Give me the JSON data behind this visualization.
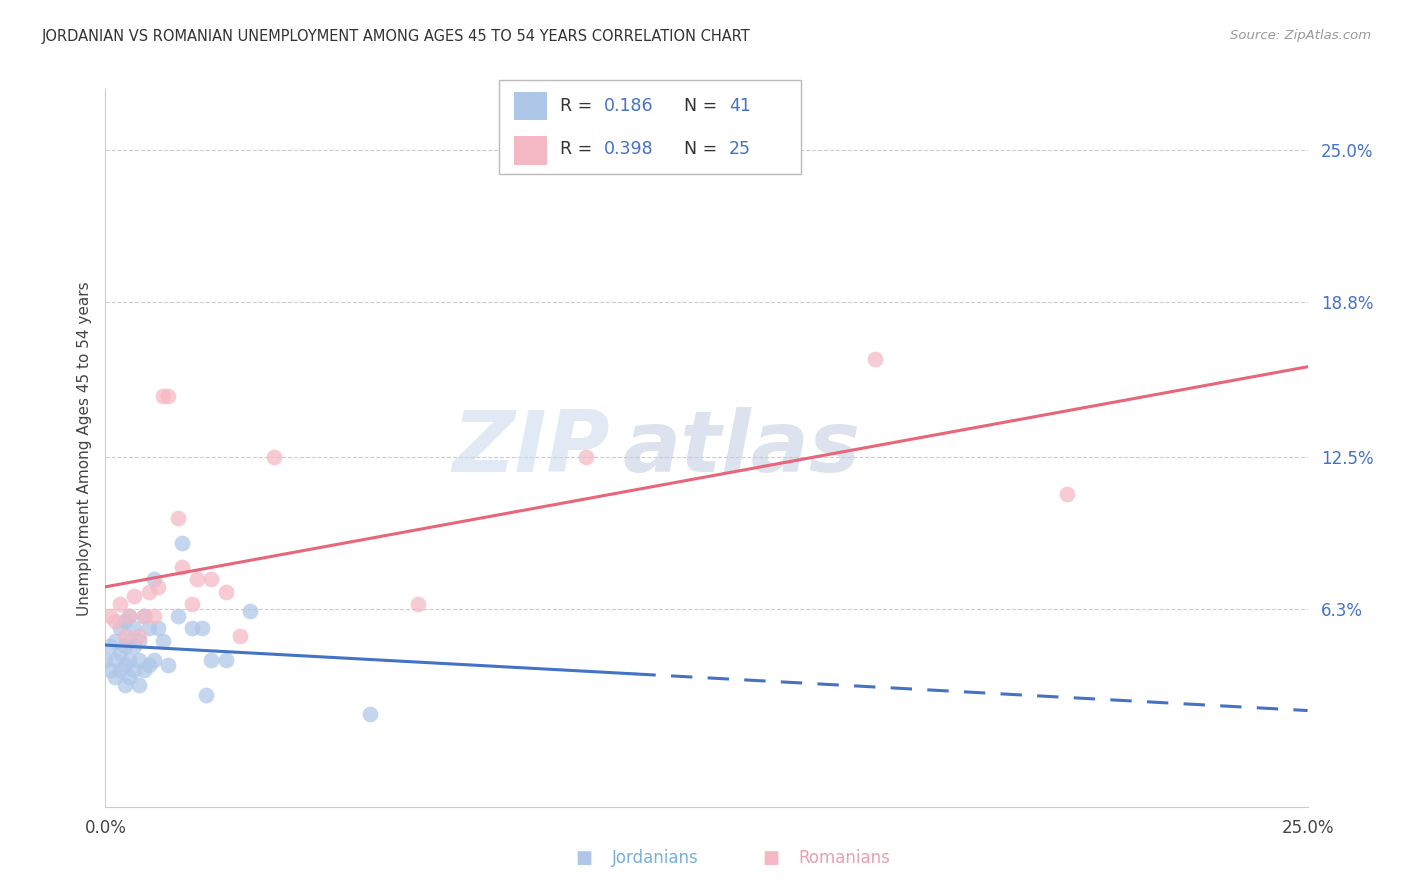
{
  "title": "JORDANIAN VS ROMANIAN UNEMPLOYMENT AMONG AGES 45 TO 54 YEARS CORRELATION CHART",
  "source": "Source: ZipAtlas.com",
  "ylabel": "Unemployment Among Ages 45 to 54 years",
  "ytick_labels": [
    "6.3%",
    "12.5%",
    "18.8%",
    "25.0%"
  ],
  "ytick_values": [
    0.063,
    0.125,
    0.188,
    0.25
  ],
  "xmin": 0.0,
  "xmax": 0.25,
  "ymin": -0.018,
  "ymax": 0.275,
  "r_jordanian": "0.186",
  "n_jordanian": "41",
  "r_romanian": "0.398",
  "n_romanian": "25",
  "jordanian_x": [
    0.0,
    0.001,
    0.001,
    0.002,
    0.002,
    0.002,
    0.003,
    0.003,
    0.003,
    0.004,
    0.004,
    0.004,
    0.004,
    0.005,
    0.005,
    0.005,
    0.005,
    0.006,
    0.006,
    0.006,
    0.007,
    0.007,
    0.007,
    0.008,
    0.008,
    0.009,
    0.009,
    0.01,
    0.01,
    0.011,
    0.012,
    0.013,
    0.015,
    0.016,
    0.018,
    0.02,
    0.021,
    0.022,
    0.025,
    0.03,
    0.055
  ],
  "jordanian_y": [
    0.042,
    0.038,
    0.048,
    0.035,
    0.042,
    0.05,
    0.038,
    0.045,
    0.055,
    0.032,
    0.04,
    0.048,
    0.058,
    0.035,
    0.042,
    0.05,
    0.06,
    0.038,
    0.048,
    0.055,
    0.032,
    0.042,
    0.05,
    0.038,
    0.06,
    0.04,
    0.055,
    0.042,
    0.075,
    0.055,
    0.05,
    0.04,
    0.06,
    0.09,
    0.055,
    0.055,
    0.028,
    0.042,
    0.042,
    0.062,
    0.02
  ],
  "romanian_x": [
    0.001,
    0.002,
    0.003,
    0.004,
    0.005,
    0.006,
    0.007,
    0.008,
    0.009,
    0.01,
    0.011,
    0.012,
    0.013,
    0.015,
    0.016,
    0.018,
    0.019,
    0.022,
    0.025,
    0.028,
    0.035,
    0.065,
    0.1,
    0.16,
    0.2
  ],
  "romanian_y": [
    0.06,
    0.058,
    0.065,
    0.052,
    0.06,
    0.068,
    0.052,
    0.06,
    0.07,
    0.06,
    0.072,
    0.15,
    0.15,
    0.1,
    0.08,
    0.065,
    0.075,
    0.075,
    0.07,
    0.052,
    0.125,
    0.065,
    0.125,
    0.165,
    0.11
  ],
  "jordanian_line_color": "#4472c4",
  "romanian_line_color": "#e8657a",
  "jordanian_dot_color": "#aec6e8",
  "romanian_dot_color": "#f4b8c4",
  "dot_size": 130,
  "dot_alpha": 0.72,
  "watermark_line1": "ZIP",
  "watermark_line2": "atlas",
  "watermark_color1": "#c8d8ec",
  "watermark_color2": "#c0cce0",
  "background_color": "#ffffff",
  "grid_color": "#cccccc",
  "legend_color": "#4472c4",
  "bottom_label_jordanian_color": "#7ab0d8",
  "bottom_label_romanian_color": "#e8a0b0"
}
